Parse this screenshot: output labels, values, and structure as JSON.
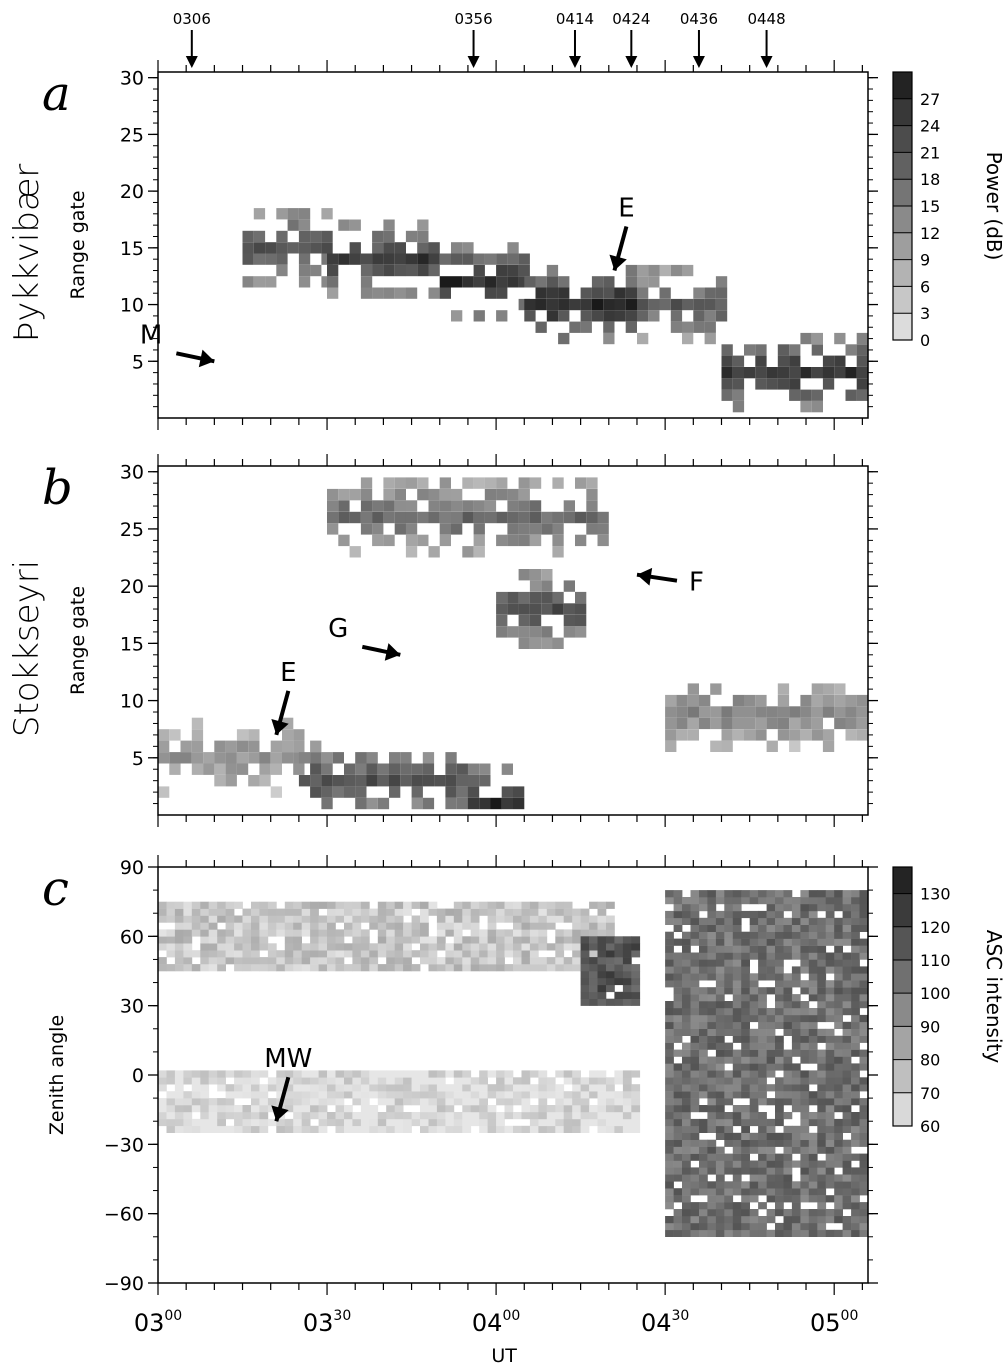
{
  "chart_data": [
    {
      "panel": "a",
      "type": "heatmap",
      "site": "Þykkvibær",
      "ylabel": "Range gate",
      "xlim_min": [
        0,
        125
      ],
      "ylim": [
        0,
        30
      ],
      "yticks": [
        5,
        10,
        15,
        20,
        25,
        30
      ],
      "colorbar": {
        "label": "Power (dB)",
        "ticks": [
          0,
          3,
          6,
          9,
          12,
          15,
          18,
          21,
          24,
          27
        ],
        "range": [
          0,
          30
        ]
      },
      "top_arrows": [
        "0306",
        "0356",
        "0414",
        "0424",
        "0436",
        "0448"
      ],
      "annotations": [
        {
          "text": "E",
          "target_min": 81,
          "target_gate": 13
        },
        {
          "text": "M",
          "target_min": 10,
          "target_gate": 5
        }
      ],
      "description_bands": [
        {
          "from_min": 15,
          "to_min": 30,
          "gate_center": 15,
          "power_db": 22
        },
        {
          "from_min": 30,
          "to_min": 50,
          "gate_center": 14,
          "power_db": 25
        },
        {
          "from_min": 50,
          "to_min": 65,
          "gate_center": 12,
          "power_db": 27
        },
        {
          "from_min": 65,
          "to_min": 85,
          "gate_center": 9.5,
          "power_db": 28
        },
        {
          "from_min": 85,
          "to_min": 100,
          "gate_center": 10,
          "power_db": 20
        },
        {
          "from_min": 100,
          "to_min": 125,
          "gate_center": 4,
          "power_db": 26
        }
      ]
    },
    {
      "panel": "b",
      "type": "heatmap",
      "site": "Stokkseyri",
      "ylabel": "Range gate",
      "ylim": [
        0,
        30
      ],
      "yticks": [
        5,
        10,
        15,
        20,
        25,
        30
      ],
      "annotations": [
        {
          "text": "E",
          "target_min": 21,
          "target_gate": 7
        },
        {
          "text": "F",
          "target_min": 85,
          "target_gate": 21
        },
        {
          "text": "G",
          "target_min": 43,
          "target_gate": 14
        }
      ],
      "description_bands": [
        {
          "from_min": 0,
          "to_min": 25,
          "gate_center": 5,
          "power_db": 12
        },
        {
          "from_min": 25,
          "to_min": 55,
          "gate_center": 3,
          "power_db": 22
        },
        {
          "from_min": 55,
          "to_min": 65,
          "gate_center": 1,
          "power_db": 28
        },
        {
          "from_min": 30,
          "to_min": 80,
          "gate_center": 26,
          "power_db": 18
        },
        {
          "from_min": 60,
          "to_min": 75,
          "gate_center": 18,
          "power_db": 22
        },
        {
          "from_min": 90,
          "to_min": 125,
          "gate_center": 9,
          "power_db": 14
        }
      ]
    },
    {
      "panel": "c",
      "type": "heatmap",
      "ylabel": "Zenith angle",
      "xlabel": "UT",
      "ylim": [
        -90,
        90
      ],
      "yticks": [
        -90,
        -60,
        -30,
        0,
        30,
        60,
        90
      ],
      "xticks": [
        {
          "h": "03",
          "m": "00"
        },
        {
          "h": "03",
          "m": "30"
        },
        {
          "h": "04",
          "m": "00"
        },
        {
          "h": "04",
          "m": "30"
        },
        {
          "h": "05",
          "m": "00"
        }
      ],
      "colorbar": {
        "label": "ASC intensity",
        "ticks": [
          60,
          70,
          80,
          90,
          100,
          110,
          120,
          130
        ],
        "range": [
          60,
          138
        ]
      },
      "annotations": [
        {
          "text": "MW",
          "target_min": 21,
          "target_zenith": -20
        }
      ],
      "description_bands": [
        {
          "from_min": 0,
          "to_min": 80,
          "zenith_from": 45,
          "zenith_to": 75,
          "intensity": 72
        },
        {
          "from_min": 0,
          "to_min": 85,
          "zenith_from": -25,
          "zenith_to": 0,
          "intensity": 64
        },
        {
          "from_min": 75,
          "to_min": 85,
          "zenith_from": 30,
          "zenith_to": 60,
          "intensity": 115
        },
        {
          "from_min": 90,
          "to_min": 125,
          "zenith_from": -70,
          "zenith_to": 80,
          "intensity": 105
        }
      ]
    }
  ]
}
